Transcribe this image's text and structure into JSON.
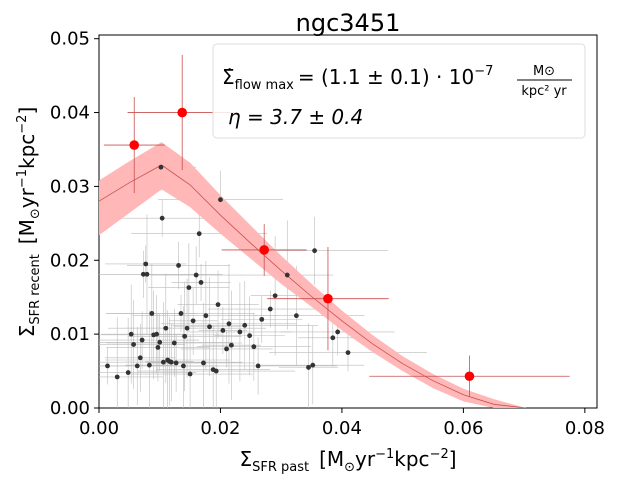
{
  "chart_data": {
    "type": "scatter",
    "title": "ngc3451",
    "xlabel": {
      "main": "Σ",
      "sub": "SFR past",
      "units": "[M",
      "sun_sub": "⊙",
      "rest1": "yr",
      "exp1": "−1",
      "rest2": "kpc",
      "exp2": "−2",
      "close": "]"
    },
    "ylabel": {
      "main": "Σ",
      "sub": "SFR recent",
      "units": "[M",
      "sun_sub": "⊙",
      "rest1": "yr",
      "exp1": "−1",
      "rest2": "kpc",
      "exp2": "−2",
      "close": "]"
    },
    "xlim": [
      0.0,
      0.082
    ],
    "ylim": [
      0.0,
      0.0505
    ],
    "xticks": [
      0.0,
      0.02,
      0.04,
      0.06,
      0.08
    ],
    "xtick_labels": [
      "0.00",
      "0.02",
      "0.04",
      "0.06",
      "0.08"
    ],
    "yticks": [
      0.0,
      0.01,
      0.02,
      0.03,
      0.04,
      0.05
    ],
    "ytick_labels": [
      "0.00",
      "0.01",
      "0.02",
      "0.03",
      "0.04",
      "0.05"
    ],
    "annotation": {
      "line1_lhs": "Σ̇",
      "line1_sub": "flow max",
      "line1_rhs": "= (1.1 ± 0.1) · 10",
      "line1_exp": "−7",
      "frac_num": "M⊙",
      "frac_den": "kpc² yr",
      "line2": "η = 3.7 ± 0.4"
    },
    "colors": {
      "binned": "#ff0000",
      "band": "#ffb3b3",
      "model_line": "#c85050",
      "points": "#333333",
      "point_err": "#bbbbbb"
    },
    "series": [
      {
        "name": "binned",
        "points": [
          {
            "x": 0.0058,
            "y": 0.0356,
            "xerr": 0.005,
            "yerr": 0.0065
          },
          {
            "x": 0.0137,
            "y": 0.04,
            "xerr": 0.009,
            "yerr": 0.0078
          },
          {
            "x": 0.0272,
            "y": 0.0214,
            "xerr": 0.007,
            "yerr": 0.0035
          },
          {
            "x": 0.0377,
            "y": 0.0148,
            "xerr": 0.01,
            "yerr": 0.007
          },
          {
            "x": 0.061,
            "y": 0.0043,
            "xerr": 0.0165,
            "yerr": 0.0028
          }
        ]
      },
      {
        "name": "model",
        "x": [
          0.0,
          0.005,
          0.0103,
          0.015,
          0.02,
          0.025,
          0.03,
          0.035,
          0.04,
          0.045,
          0.05,
          0.055,
          0.06,
          0.065,
          0.0703
        ],
        "y": [
          0.028,
          0.0305,
          0.0329,
          0.0302,
          0.0261,
          0.0223,
          0.0186,
          0.0151,
          0.0118,
          0.0087,
          0.006,
          0.0037,
          0.0018,
          0.0005,
          0.0
        ],
        "y_low": [
          0.0234,
          0.0264,
          0.0296,
          0.0272,
          0.0236,
          0.0202,
          0.0168,
          0.0137,
          0.0105,
          0.0076,
          0.005,
          0.0027,
          0.0009,
          0.0,
          0.0
        ],
        "y_high": [
          0.0308,
          0.0334,
          0.036,
          0.0332,
          0.0288,
          0.0247,
          0.0206,
          0.0168,
          0.0132,
          0.0099,
          0.007,
          0.0046,
          0.0026,
          0.0012,
          0.0
        ]
      },
      {
        "name": "pixels",
        "points": [
          {
            "x": 0.0014,
            "y": 0.0057
          },
          {
            "x": 0.003,
            "y": 0.0042
          },
          {
            "x": 0.0048,
            "y": 0.0048
          },
          {
            "x": 0.0053,
            "y": 0.01
          },
          {
            "x": 0.0057,
            "y": 0.0086
          },
          {
            "x": 0.0063,
            "y": 0.0057
          },
          {
            "x": 0.0068,
            "y": 0.0068
          },
          {
            "x": 0.0071,
            "y": 0.0092
          },
          {
            "x": 0.0073,
            "y": 0.0181
          },
          {
            "x": 0.0077,
            "y": 0.0195
          },
          {
            "x": 0.0079,
            "y": 0.0181
          },
          {
            "x": 0.0083,
            "y": 0.0058
          },
          {
            "x": 0.0087,
            "y": 0.0128
          },
          {
            "x": 0.009,
            "y": 0.0099
          },
          {
            "x": 0.0095,
            "y": 0.01
          },
          {
            "x": 0.0097,
            "y": 0.0082
          },
          {
            "x": 0.01,
            "y": 0.0089
          },
          {
            "x": 0.0102,
            "y": 0.0326
          },
          {
            "x": 0.0104,
            "y": 0.0257
          },
          {
            "x": 0.0106,
            "y": 0.0062
          },
          {
            "x": 0.011,
            "y": 0.0108
          },
          {
            "x": 0.0113,
            "y": 0.0065
          },
          {
            "x": 0.0116,
            "y": 0.0063
          },
          {
            "x": 0.0119,
            "y": 0.0062
          },
          {
            "x": 0.0124,
            "y": 0.0088
          },
          {
            "x": 0.0127,
            "y": 0.0061
          },
          {
            "x": 0.0131,
            "y": 0.0193
          },
          {
            "x": 0.0135,
            "y": 0.0128
          },
          {
            "x": 0.0139,
            "y": 0.0057
          },
          {
            "x": 0.0141,
            "y": 0.0097
          },
          {
            "x": 0.0145,
            "y": 0.0108
          },
          {
            "x": 0.0148,
            "y": 0.0163
          },
          {
            "x": 0.015,
            "y": 0.0046
          },
          {
            "x": 0.0155,
            "y": 0.0118
          },
          {
            "x": 0.016,
            "y": 0.018
          },
          {
            "x": 0.0165,
            "y": 0.0236
          },
          {
            "x": 0.0168,
            "y": 0.017
          },
          {
            "x": 0.0172,
            "y": 0.0061
          },
          {
            "x": 0.0176,
            "y": 0.0125
          },
          {
            "x": 0.0182,
            "y": 0.011
          },
          {
            "x": 0.0188,
            "y": 0.0052
          },
          {
            "x": 0.0193,
            "y": 0.005
          },
          {
            "x": 0.0196,
            "y": 0.014
          },
          {
            "x": 0.02,
            "y": 0.0282
          },
          {
            "x": 0.0204,
            "y": 0.0105
          },
          {
            "x": 0.021,
            "y": 0.008
          },
          {
            "x": 0.0214,
            "y": 0.0114
          },
          {
            "x": 0.0218,
            "y": 0.0085
          },
          {
            "x": 0.0232,
            "y": 0.0103
          },
          {
            "x": 0.024,
            "y": 0.0112
          },
          {
            "x": 0.0248,
            "y": 0.0098
          },
          {
            "x": 0.0255,
            "y": 0.0083
          },
          {
            "x": 0.0262,
            "y": 0.0057
          },
          {
            "x": 0.0268,
            "y": 0.012
          },
          {
            "x": 0.0282,
            "y": 0.0134
          },
          {
            "x": 0.029,
            "y": 0.0152
          },
          {
            "x": 0.031,
            "y": 0.018
          },
          {
            "x": 0.0325,
            "y": 0.0125
          },
          {
            "x": 0.0345,
            "y": 0.0055
          },
          {
            "x": 0.0352,
            "y": 0.0058
          },
          {
            "x": 0.0355,
            "y": 0.0213
          },
          {
            "x": 0.0385,
            "y": 0.0095
          },
          {
            "x": 0.0393,
            "y": 0.0103
          },
          {
            "x": 0.041,
            "y": 0.0075
          }
        ]
      }
    ]
  }
}
